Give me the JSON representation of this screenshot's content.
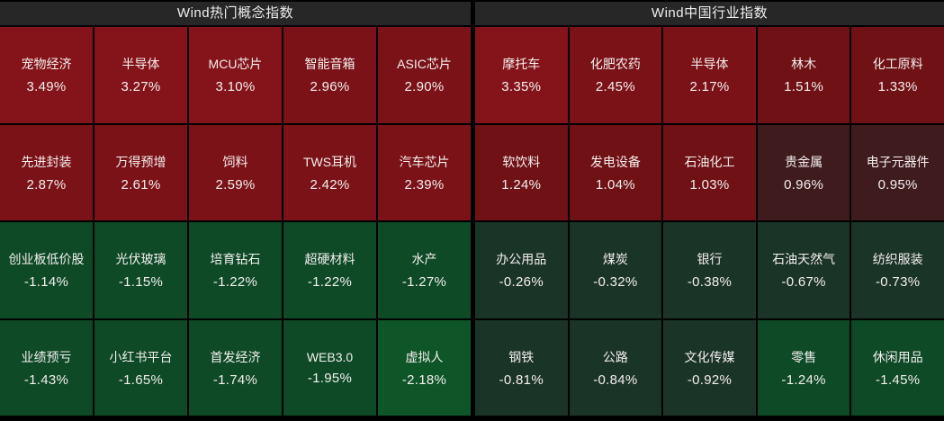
{
  "colors": {
    "background": "#000000",
    "header_bg": "#272727",
    "header_text": "#efefef",
    "cell_text": "#f4efef",
    "up_strong": "#84141a",
    "up_medium": "#7b1218",
    "up_mild": "#6d1015",
    "up_faint": "#401b1e",
    "down_faint": "#1b3428",
    "down_medium": "#0d4a25",
    "down_strong": "#0e5528"
  },
  "chart_data": [
    {
      "type": "heatmap",
      "title": "Wind热门概念指数",
      "rows": [
        [
          {
            "label": "宠物经济",
            "value": "3.49%",
            "pct": 3.49,
            "color": "#84141a"
          },
          {
            "label": "半导体",
            "value": "3.27%",
            "pct": 3.27,
            "color": "#84141a"
          },
          {
            "label": "MCU芯片",
            "value": "3.10%",
            "pct": 3.1,
            "color": "#84141a"
          },
          {
            "label": "智能音箱",
            "value": "2.96%",
            "pct": 2.96,
            "color": "#7b1218"
          },
          {
            "label": "ASIC芯片",
            "value": "2.90%",
            "pct": 2.9,
            "color": "#7b1218"
          }
        ],
        [
          {
            "label": "先进封装",
            "value": "2.87%",
            "pct": 2.87,
            "color": "#7b1218"
          },
          {
            "label": "万得预增",
            "value": "2.61%",
            "pct": 2.61,
            "color": "#7b1218"
          },
          {
            "label": "饲料",
            "value": "2.59%",
            "pct": 2.59,
            "color": "#7b1218"
          },
          {
            "label": "TWS耳机",
            "value": "2.42%",
            "pct": 2.42,
            "color": "#7b1218"
          },
          {
            "label": "汽车芯片",
            "value": "2.39%",
            "pct": 2.39,
            "color": "#7b1218"
          }
        ],
        [
          {
            "label": "创业板低价股",
            "value": "-1.14%",
            "pct": -1.14,
            "color": "#0d4a25"
          },
          {
            "label": "光伏玻璃",
            "value": "-1.15%",
            "pct": -1.15,
            "color": "#0d4a25"
          },
          {
            "label": "培育钻石",
            "value": "-1.22%",
            "pct": -1.22,
            "color": "#0d4a25"
          },
          {
            "label": "超硬材料",
            "value": "-1.22%",
            "pct": -1.22,
            "color": "#0d4a25"
          },
          {
            "label": "水产",
            "value": "-1.27%",
            "pct": -1.27,
            "color": "#0d4a25"
          }
        ],
        [
          {
            "label": "业绩预亏",
            "value": "-1.43%",
            "pct": -1.43,
            "color": "#0d4a25"
          },
          {
            "label": "小红书平台",
            "value": "-1.65%",
            "pct": -1.65,
            "color": "#0d4a25"
          },
          {
            "label": "首发经济",
            "value": "-1.74%",
            "pct": -1.74,
            "color": "#0d4a25"
          },
          {
            "label": "WEB3.0",
            "value": "-1.95%",
            "pct": -1.95,
            "color": "#0d4a25"
          },
          {
            "label": "虚拟人",
            "value": "-2.18%",
            "pct": -2.18,
            "color": "#0e5528"
          }
        ]
      ]
    },
    {
      "type": "heatmap",
      "title": "Wind中国行业指数",
      "rows": [
        [
          {
            "label": "摩托车",
            "value": "3.35%",
            "pct": 3.35,
            "color": "#84141a"
          },
          {
            "label": "化肥农药",
            "value": "2.45%",
            "pct": 2.45,
            "color": "#7b1218"
          },
          {
            "label": "半导体",
            "value": "2.17%",
            "pct": 2.17,
            "color": "#7b1218"
          },
          {
            "label": "林木",
            "value": "1.51%",
            "pct": 1.51,
            "color": "#701116"
          },
          {
            "label": "化工原料",
            "value": "1.33%",
            "pct": 1.33,
            "color": "#701116"
          }
        ],
        [
          {
            "label": "软饮料",
            "value": "1.24%",
            "pct": 1.24,
            "color": "#701116"
          },
          {
            "label": "发电设备",
            "value": "1.04%",
            "pct": 1.04,
            "color": "#701116"
          },
          {
            "label": "石油化工",
            "value": "1.03%",
            "pct": 1.03,
            "color": "#701116"
          },
          {
            "label": "贵金属",
            "value": "0.96%",
            "pct": 0.96,
            "color": "#401b1e"
          },
          {
            "label": "电子元器件",
            "value": "0.95%",
            "pct": 0.95,
            "color": "#401b1e"
          }
        ],
        [
          {
            "label": "办公用品",
            "value": "-0.26%",
            "pct": -0.26,
            "color": "#1b3428"
          },
          {
            "label": "煤炭",
            "value": "-0.32%",
            "pct": -0.32,
            "color": "#1b3428"
          },
          {
            "label": "银行",
            "value": "-0.38%",
            "pct": -0.38,
            "color": "#1b3428"
          },
          {
            "label": "石油天然气",
            "value": "-0.67%",
            "pct": -0.67,
            "color": "#1b3428"
          },
          {
            "label": "纺织服装",
            "value": "-0.73%",
            "pct": -0.73,
            "color": "#1b3428"
          }
        ],
        [
          {
            "label": "钢铁",
            "value": "-0.81%",
            "pct": -0.81,
            "color": "#1b3428"
          },
          {
            "label": "公路",
            "value": "-0.84%",
            "pct": -0.84,
            "color": "#1b3428"
          },
          {
            "label": "文化传媒",
            "value": "-0.92%",
            "pct": -0.92,
            "color": "#1b3428"
          },
          {
            "label": "零售",
            "value": "-1.24%",
            "pct": -1.24,
            "color": "#0d4a25"
          },
          {
            "label": "休闲用品",
            "value": "-1.45%",
            "pct": -1.45,
            "color": "#0d4a25"
          }
        ]
      ]
    }
  ]
}
